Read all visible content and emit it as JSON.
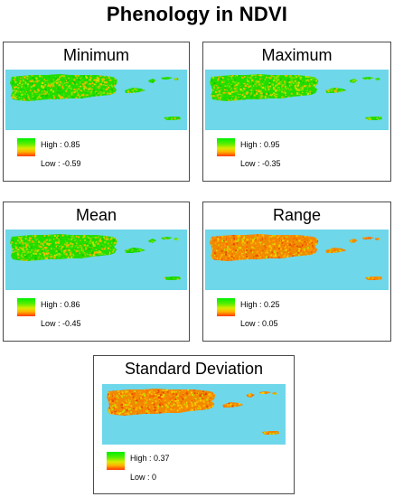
{
  "title": "Phenology in NDVI",
  "colors": {
    "sea": "#6ed7ea",
    "high": "#00ee00",
    "low": "#ff3a00",
    "frame": "#4a4a4a"
  },
  "panels": [
    {
      "name": "Minimum",
      "high": "High : 0.85",
      "low": "Low : -0.59",
      "scheme": "green"
    },
    {
      "name": "Maximum",
      "high": "High : 0.95",
      "low": "Low : -0.35",
      "scheme": "green"
    },
    {
      "name": "Mean",
      "high": "High : 0.86",
      "low": "Low : -0.45",
      "scheme": "green"
    },
    {
      "name": "Range",
      "high": "High : 0.25",
      "low": "Low : 0.05",
      "scheme": "orange"
    },
    {
      "name": "Standard Deviation",
      "high": "High : 0.37",
      "low": "Low : 0",
      "scheme": "orange"
    }
  ]
}
